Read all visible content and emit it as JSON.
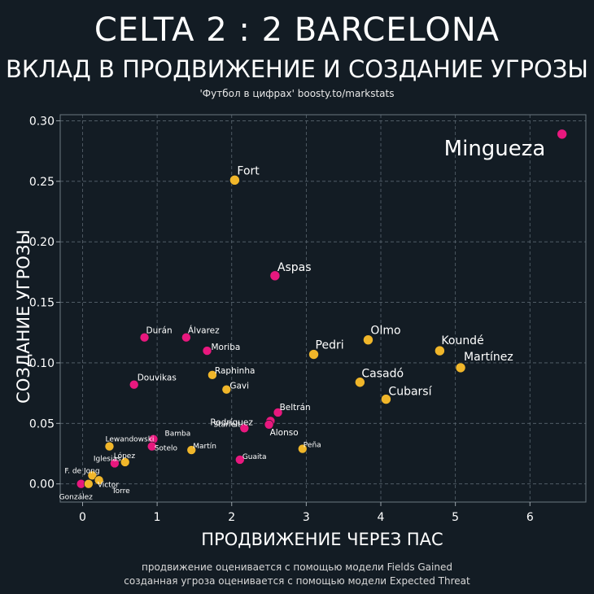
{
  "header": {
    "title": "CELTA 2 : 2 BARCELONA",
    "subtitle": "ВКЛАД В ПРОДВИЖЕНИЕ И СОЗДАНИЕ УГРОЗЫ",
    "source": "'Футбол в цифрах' boosty.to/markstats"
  },
  "footer": {
    "line1": "продвижение оценивается с помощью модели Fields Gained",
    "line2": "созданная угроза оценивается с помощью модели Expected Threat"
  },
  "colors": {
    "celta": "#e8187e",
    "barcelona": "#f0b62a",
    "background": "#131c24",
    "grid": "#5a6670"
  },
  "chart_data": {
    "type": "scatter",
    "xlabel": "ПРОДВИЖЕНИЕ ЧЕРЕЗ ПАС",
    "ylabel": "СОЗДАНИЕ УГРОЗЫ",
    "xlim": [
      -0.3,
      6.75
    ],
    "ylim": [
      -0.015,
      0.305
    ],
    "xticks": [
      0,
      1,
      2,
      3,
      4,
      5,
      6
    ],
    "yticks": [
      0.0,
      0.05,
      0.1,
      0.15,
      0.2,
      0.25,
      0.3
    ],
    "ytick_labels": [
      "0.00",
      "0.05",
      "0.10",
      "0.15",
      "0.20",
      "0.25",
      "0.30"
    ],
    "grid": true,
    "series": [
      {
        "name": "Celta",
        "color": "#e8187e",
        "points": [
          {
            "label": "Mingueza",
            "x": 6.43,
            "y": 0.289,
            "size": "xl"
          },
          {
            "label": "Aspas",
            "x": 2.58,
            "y": 0.172,
            "size": "l"
          },
          {
            "label": "Durán",
            "x": 0.83,
            "y": 0.121,
            "size": "s"
          },
          {
            "label": "Álvarez",
            "x": 1.39,
            "y": 0.121,
            "size": "s"
          },
          {
            "label": "Moriba",
            "x": 1.67,
            "y": 0.11,
            "size": "s"
          },
          {
            "label": "Douvikas",
            "x": 0.69,
            "y": 0.082,
            "size": "s"
          },
          {
            "label": "Beltrán",
            "x": 2.62,
            "y": 0.059,
            "size": "s"
          },
          {
            "label": "Rodríguez",
            "x": 2.52,
            "y": 0.052,
            "size": "s"
          },
          {
            "label": "Alonso",
            "x": 2.5,
            "y": 0.049,
            "size": "s"
          },
          {
            "label": "Starfelt",
            "x": 2.17,
            "y": 0.046,
            "size": "xs"
          },
          {
            "label": "Bamba",
            "x": 0.95,
            "y": 0.037,
            "size": "xs"
          },
          {
            "label": "Sotelo",
            "x": 0.93,
            "y": 0.031,
            "size": "xs"
          },
          {
            "label": "Guaita",
            "x": 2.11,
            "y": 0.02,
            "size": "xs"
          },
          {
            "label": "Iglesias",
            "x": 0.43,
            "y": 0.017,
            "size": "xs"
          },
          {
            "label": "González",
            "x": -0.02,
            "y": 0.0,
            "size": "xs"
          }
        ]
      },
      {
        "name": "Barcelona",
        "color": "#f0b62a",
        "points": [
          {
            "label": "Fort",
            "x": 2.04,
            "y": 0.251,
            "size": "l"
          },
          {
            "label": "Olmo",
            "x": 3.83,
            "y": 0.119,
            "size": "l"
          },
          {
            "label": "Koundé",
            "x": 4.79,
            "y": 0.11,
            "size": "l"
          },
          {
            "label": "Pedri",
            "x": 3.1,
            "y": 0.107,
            "size": "l"
          },
          {
            "label": "Martínez",
            "x": 5.07,
            "y": 0.096,
            "size": "l"
          },
          {
            "label": "Raphinha",
            "x": 1.74,
            "y": 0.09,
            "size": "s"
          },
          {
            "label": "Casadó",
            "x": 3.72,
            "y": 0.084,
            "size": "l"
          },
          {
            "label": "Gavi",
            "x": 1.93,
            "y": 0.078,
            "size": "s"
          },
          {
            "label": "Cubarsí",
            "x": 4.07,
            "y": 0.07,
            "size": "l"
          },
          {
            "label": "Lewandowski",
            "x": 0.36,
            "y": 0.031,
            "size": "xs"
          },
          {
            "label": "Peña",
            "x": 2.95,
            "y": 0.029,
            "size": "xs"
          },
          {
            "label": "Martín",
            "x": 1.46,
            "y": 0.028,
            "size": "xs"
          },
          {
            "label": "López",
            "x": 0.57,
            "y": 0.018,
            "size": "xs"
          },
          {
            "label": "F. de Jong",
            "x": 0.13,
            "y": 0.007,
            "size": "xs"
          },
          {
            "label": "Torre",
            "x": 0.22,
            "y": 0.003,
            "size": "xs"
          },
          {
            "label": "Victor",
            "x": 0.08,
            "y": 0.0,
            "size": "xs"
          }
        ]
      }
    ]
  }
}
